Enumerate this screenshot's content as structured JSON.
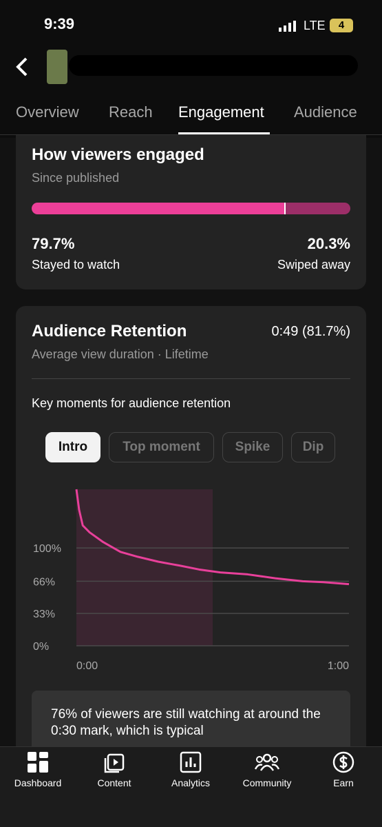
{
  "status_bar": {
    "time": "9:39",
    "network": "LTE",
    "battery": "4"
  },
  "tabs": [
    "Overview",
    "Reach",
    "Engagement",
    "Audience"
  ],
  "engagement_card": {
    "title": "How viewers engaged",
    "subtitle": "Since published",
    "stayed": {
      "value": 79.7,
      "value_label": "79.7%",
      "label": "Stayed to watch",
      "color": "#ec3f98"
    },
    "swiped": {
      "value": 20.3,
      "value_label": "20.3%",
      "label": "Swiped away",
      "color": "#9c2e68"
    }
  },
  "retention_card": {
    "title": "Audience Retention",
    "summary": "0:49 (81.7%)",
    "subtitle": "Average view duration · Lifetime",
    "key_moments_title": "Key moments for audience retention",
    "buttons": [
      "Intro",
      "Top moment",
      "Spike",
      "Dip"
    ],
    "note": "76% of viewers are still watching at around the 0:30 mark, which is typical"
  },
  "chart_data": {
    "type": "line",
    "x": [
      0,
      0.6,
      1.4,
      2.9,
      5.9,
      9.7,
      13.5,
      18,
      22.7,
      27,
      31.7,
      37.7,
      43.8,
      49.8,
      54.4,
      60
    ],
    "values": [
      160,
      139,
      123,
      116,
      106,
      96,
      91,
      86,
      82,
      78,
      75,
      73,
      69,
      66,
      65,
      63
    ],
    "color": "#e8409a",
    "highlight_range": [
      0,
      30
    ],
    "xlim": [
      0,
      60
    ],
    "ylim": [
      0,
      160
    ],
    "xticks": [
      {
        "value": 0,
        "label": "0:00"
      },
      {
        "value": 60,
        "label": "1:00"
      }
    ],
    "yticks": [
      {
        "value": 0,
        "label": "0%"
      },
      {
        "value": 33,
        "label": "33%"
      },
      {
        "value": 66,
        "label": "66%"
      },
      {
        "value": 100,
        "label": "100%"
      }
    ],
    "grid": true
  },
  "bottom_nav": [
    "Dashboard",
    "Content",
    "Analytics",
    "Community",
    "Earn"
  ]
}
